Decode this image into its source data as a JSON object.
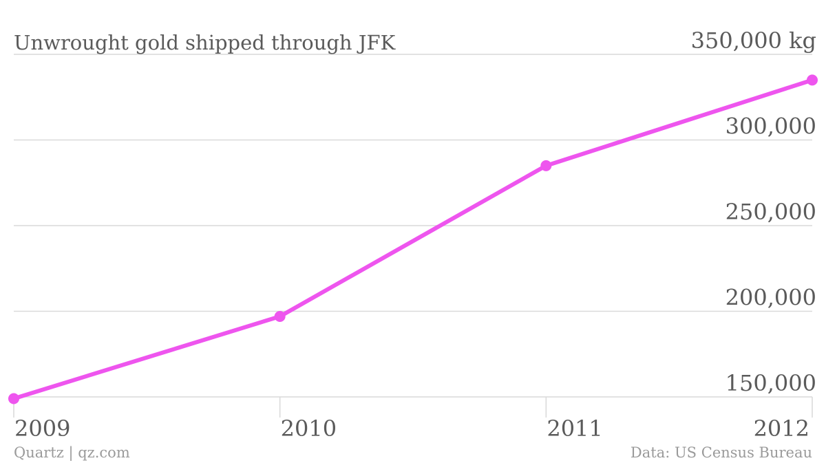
{
  "chart_data": {
    "type": "line",
    "title": "Unwrought gold shipped through JFK",
    "x": [
      "2009",
      "2010",
      "2011",
      "2012"
    ],
    "series": [
      {
        "values": [
          149000,
          197000,
          285000,
          335000
        ],
        "color": "#ee55ee"
      }
    ],
    "y_ticks": [
      150000,
      200000,
      250000,
      300000,
      350000
    ],
    "y_tick_labels": [
      "150,000",
      "200,000",
      "250,000",
      "300,000",
      "350,000 kg"
    ],
    "ylim": [
      150000,
      350000
    ],
    "grid": true,
    "y_axis_side": "right"
  },
  "footer": {
    "source_left": "Quartz | qz.com",
    "source_right": "Data: US Census Bureau"
  },
  "colors": {
    "line": "#ee55ee",
    "text": "#5a5a5a",
    "footer_text": "#9a9a9a",
    "grid": "#d9d9d9"
  }
}
